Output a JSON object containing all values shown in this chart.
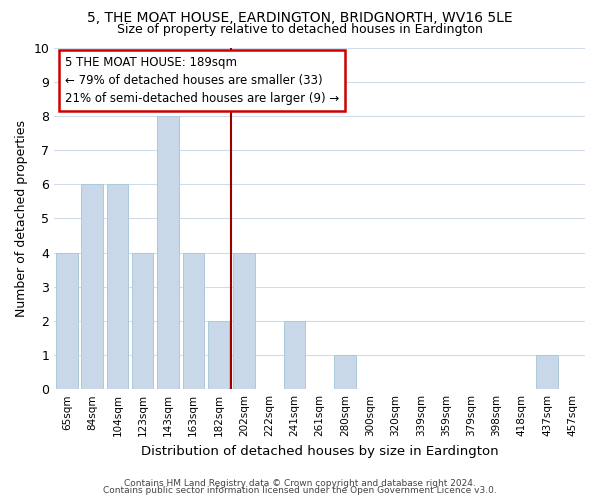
{
  "title": "5, THE MOAT HOUSE, EARDINGTON, BRIDGNORTH, WV16 5LE",
  "subtitle": "Size of property relative to detached houses in Eardington",
  "xlabel": "Distribution of detached houses by size in Eardington",
  "ylabel": "Number of detached properties",
  "bar_color": "#c8d8e8",
  "bar_edge_color": "#aec8dc",
  "bin_labels": [
    "65sqm",
    "84sqm",
    "104sqm",
    "123sqm",
    "143sqm",
    "163sqm",
    "182sqm",
    "202sqm",
    "222sqm",
    "241sqm",
    "261sqm",
    "280sqm",
    "300sqm",
    "320sqm",
    "339sqm",
    "359sqm",
    "379sqm",
    "398sqm",
    "418sqm",
    "437sqm",
    "457sqm"
  ],
  "bar_heights": [
    4,
    6,
    6,
    4,
    8,
    4,
    2,
    4,
    0,
    2,
    0,
    1,
    0,
    0,
    0,
    0,
    0,
    0,
    0,
    1,
    0
  ],
  "ylim": [
    0,
    10
  ],
  "yticks": [
    0,
    1,
    2,
    3,
    4,
    5,
    6,
    7,
    8,
    9,
    10
  ],
  "property_line_x": 6.5,
  "annotation_line1": "5 THE MOAT HOUSE: 189sqm",
  "annotation_line2": "← 79% of detached houses are smaller (33)",
  "annotation_line3": "21% of semi-detached houses are larger (9) →",
  "line_color": "#990000",
  "footer_line1": "Contains HM Land Registry data © Crown copyright and database right 2024.",
  "footer_line2": "Contains public sector information licensed under the Open Government Licence v3.0.",
  "bg_color": "#ffffff",
  "grid_color": "#d0dce8"
}
